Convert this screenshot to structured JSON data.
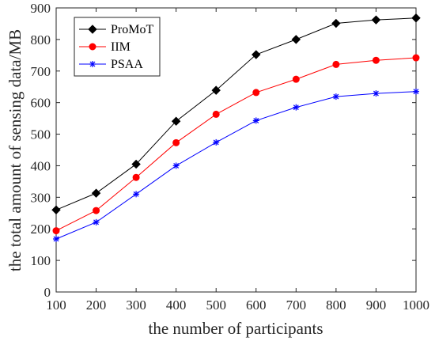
{
  "chart_data": {
    "type": "line",
    "x": [
      100,
      200,
      300,
      400,
      500,
      600,
      700,
      800,
      900,
      1000
    ],
    "xlabel": "the number of participants",
    "ylabel": "the total amount of sensing data/MB",
    "xlim": [
      100,
      1000
    ],
    "ylim": [
      0,
      900
    ],
    "xticks": [
      100,
      200,
      300,
      400,
      500,
      600,
      700,
      800,
      900,
      1000
    ],
    "yticks": [
      0,
      100,
      200,
      300,
      400,
      500,
      600,
      700,
      800,
      900
    ],
    "grid": false,
    "legend_position": "top-left",
    "series": [
      {
        "name": "ProMoT",
        "color": "#000000",
        "marker": "diamond",
        "values": [
          260,
          313,
          405,
          541,
          639,
          752,
          800,
          851,
          862,
          868
        ]
      },
      {
        "name": "IIM",
        "color": "#ff0000",
        "marker": "circle",
        "values": [
          194,
          258,
          363,
          473,
          563,
          632,
          674,
          721,
          734,
          742
        ]
      },
      {
        "name": "PSAA",
        "color": "#0000ff",
        "marker": "asterisk",
        "values": [
          168,
          221,
          310,
          400,
          474,
          543,
          585,
          619,
          629,
          635
        ]
      }
    ]
  }
}
